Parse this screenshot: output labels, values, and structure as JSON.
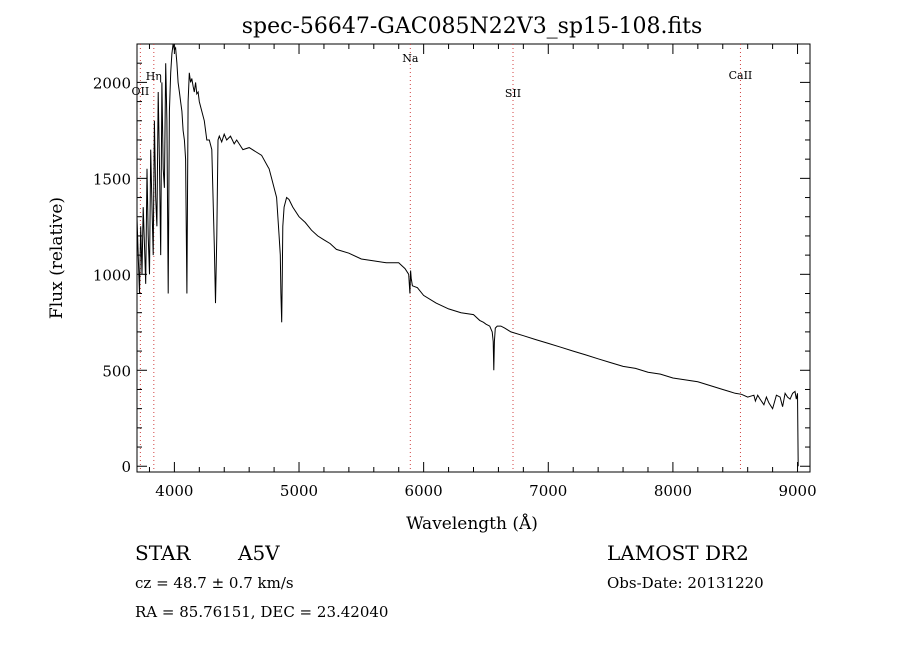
{
  "chart_data": {
    "type": "line",
    "title": "spec-56647-GAC085N22V3_sp15-108.fits",
    "xlabel": "Wavelength (Å)",
    "ylabel": "Flux (relative)",
    "xlim": [
      3700,
      9100
    ],
    "ylim": [
      -30,
      2200
    ],
    "xticks": [
      4000,
      5000,
      6000,
      7000,
      8000,
      9000
    ],
    "xtick_labels": [
      "4000",
      "5000",
      "6000",
      "7000",
      "8000",
      "9000"
    ],
    "yticks": [
      0,
      500,
      1000,
      1500,
      2000
    ],
    "ytick_labels": [
      "0",
      "500",
      "1000",
      "1500",
      "2000"
    ],
    "line_markers": [
      {
        "name": "OII",
        "wavelength": 3727
      },
      {
        "name": "Hη",
        "wavelength": 3835
      },
      {
        "name": "Na",
        "wavelength": 5893
      },
      {
        "name": "SII",
        "wavelength": 6717
      },
      {
        "name": "CaII",
        "wavelength": 8542
      }
    ],
    "series": [
      {
        "name": "spectrum",
        "x": [
          3700,
          3710,
          3720,
          3730,
          3740,
          3750,
          3760,
          3770,
          3780,
          3790,
          3800,
          3810,
          3820,
          3830,
          3840,
          3850,
          3860,
          3870,
          3880,
          3890,
          3900,
          3910,
          3920,
          3930,
          3940,
          3950,
          3960,
          3970,
          3980,
          3990,
          4000,
          4010,
          4020,
          4030,
          4040,
          4050,
          4060,
          4070,
          4080,
          4090,
          4100,
          4110,
          4120,
          4130,
          4140,
          4150,
          4160,
          4170,
          4180,
          4190,
          4200,
          4220,
          4240,
          4260,
          4280,
          4300,
          4320,
          4330,
          4340,
          4350,
          4360,
          4380,
          4400,
          4420,
          4450,
          4480,
          4500,
          4550,
          4600,
          4650,
          4700,
          4750,
          4760,
          4780,
          4800,
          4820,
          4840,
          4850,
          4855,
          4861,
          4866,
          4870,
          4880,
          4900,
          4920,
          4950,
          5000,
          5050,
          5100,
          5150,
          5200,
          5250,
          5300,
          5400,
          5500,
          5600,
          5700,
          5800,
          5850,
          5880,
          5890,
          5895,
          5900,
          5910,
          5950,
          6000,
          6100,
          6200,
          6300,
          6400,
          6450,
          6480,
          6500,
          6530,
          6550,
          6558,
          6563,
          6568,
          6575,
          6590,
          6620,
          6650,
          6700,
          6800,
          6900,
          7000,
          7100,
          7200,
          7300,
          7400,
          7500,
          7600,
          7700,
          7800,
          7900,
          8000,
          8100,
          8200,
          8300,
          8400,
          8450,
          8500,
          8550,
          8600,
          8650,
          8662,
          8680,
          8700,
          8730,
          8750,
          8770,
          8800,
          8830,
          8860,
          8880,
          8900,
          8920,
          8940,
          8960,
          8980,
          8990,
          9000,
          9005
        ],
        "values": [
          1300,
          1100,
          900,
          1250,
          1000,
          1350,
          1150,
          950,
          1550,
          1200,
          1000,
          1650,
          1350,
          1100,
          1800,
          1400,
          1250,
          1950,
          1600,
          1100,
          2000,
          1550,
          1450,
          2100,
          1800,
          900,
          1850,
          2050,
          2150,
          2200,
          2170,
          2180,
          2100,
          2000,
          1950,
          1900,
          1850,
          1750,
          1700,
          1600,
          900,
          1900,
          2050,
          2000,
          2020,
          1980,
          1950,
          2000,
          1940,
          1950,
          1900,
          1850,
          1800,
          1700,
          1700,
          1650,
          1150,
          850,
          1200,
          1700,
          1720,
          1690,
          1730,
          1700,
          1720,
          1680,
          1700,
          1650,
          1660,
          1640,
          1620,
          1560,
          1550,
          1500,
          1450,
          1400,
          1200,
          1100,
          900,
          750,
          1000,
          1250,
          1350,
          1400,
          1390,
          1350,
          1300,
          1270,
          1230,
          1200,
          1180,
          1160,
          1130,
          1110,
          1080,
          1070,
          1060,
          1060,
          1030,
          1000,
          900,
          1020,
          980,
          940,
          930,
          890,
          850,
          820,
          800,
          790,
          760,
          750,
          740,
          730,
          700,
          650,
          500,
          650,
          720,
          730,
          730,
          720,
          700,
          680,
          660,
          640,
          620,
          600,
          580,
          560,
          540,
          520,
          510,
          490,
          480,
          460,
          450,
          440,
          420,
          400,
          390,
          380,
          375,
          360,
          370,
          340,
          370,
          350,
          320,
          360,
          330,
          300,
          370,
          360,
          310,
          380,
          360,
          350,
          380,
          390,
          350,
          380,
          0
        ]
      }
    ]
  },
  "info": {
    "object_type": "STAR",
    "subclass": "A5V",
    "survey": "LAMOST DR2",
    "cz": "cz = 48.7 ± 0.7 km/s",
    "obs_date": "Obs-Date: 20131220",
    "radec": "RA =  85.76151, DEC =  23.42040"
  }
}
